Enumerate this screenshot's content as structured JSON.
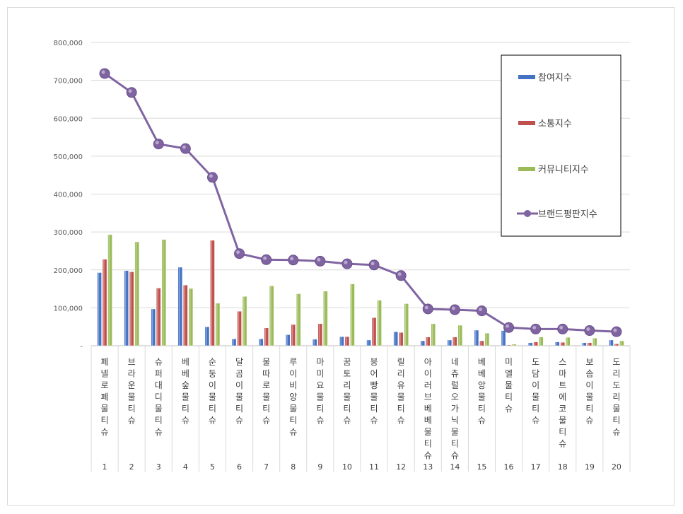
{
  "chart_data": {
    "type": "bar",
    "title": "",
    "xlabel": "",
    "ylabel": "",
    "ylim": [
      0,
      800000
    ],
    "yticks": [
      "-",
      "100,000",
      "200,000",
      "300,000",
      "400,000",
      "500,000",
      "600,000",
      "700,000",
      "800,000"
    ],
    "grid": true,
    "legend_position": "right",
    "categories": [
      "페넬로페물티슈",
      "브라운물티슈",
      "슈퍼대디물티슈",
      "베베숲물티슈",
      "순둥이물티슈",
      "달곰이물티슈",
      "물따로물티슈",
      "루이비앙물티슈",
      "마미요물티슈",
      "꿈토리물티슈",
      "붕어빵물티슈",
      "릴리유물티슈",
      "아이러브베베물티슈",
      "네츄럴오가닉물티슈",
      "베베앙물티슈",
      "미엘물티슈",
      "도담이물티슈",
      "스마트에코물티슈",
      "보솜이물티슈",
      "도리도리물티슈"
    ],
    "ranks": [
      "1",
      "2",
      "3",
      "4",
      "5",
      "6",
      "7",
      "8",
      "9",
      "10",
      "11",
      "12",
      "13",
      "14",
      "15",
      "16",
      "17",
      "18",
      "19",
      "20"
    ],
    "series": [
      {
        "name": "참여지수",
        "type": "bar",
        "color": "#4472c4",
        "values": [
          193000,
          198000,
          97000,
          207000,
          50000,
          18000,
          18000,
          29000,
          17000,
          24000,
          15000,
          37000,
          13000,
          15000,
          41000,
          40000,
          8000,
          10000,
          8000,
          15000
        ]
      },
      {
        "name": "소통지수",
        "type": "bar",
        "color": "#c0504d",
        "values": [
          228000,
          195000,
          152000,
          160000,
          278000,
          91000,
          47000,
          56000,
          58000,
          24000,
          74000,
          35000,
          23000,
          23000,
          13000,
          2000,
          10000,
          9000,
          8000,
          5000
        ]
      },
      {
        "name": "커뮤니티지수",
        "type": "bar",
        "color": "#9bbb59",
        "values": [
          293000,
          274000,
          280000,
          151000,
          112000,
          130000,
          158000,
          137000,
          144000,
          163000,
          120000,
          111000,
          58000,
          54000,
          33000,
          4000,
          23000,
          22000,
          20000,
          13000
        ]
      },
      {
        "name": "브랜드평판지수",
        "type": "line",
        "color": "#8064a2",
        "values": [
          718000,
          668000,
          532000,
          520000,
          444000,
          243000,
          227000,
          226000,
          223000,
          216000,
          213000,
          185000,
          97000,
          95000,
          92000,
          48000,
          44000,
          44000,
          40000,
          37000
        ]
      }
    ]
  }
}
